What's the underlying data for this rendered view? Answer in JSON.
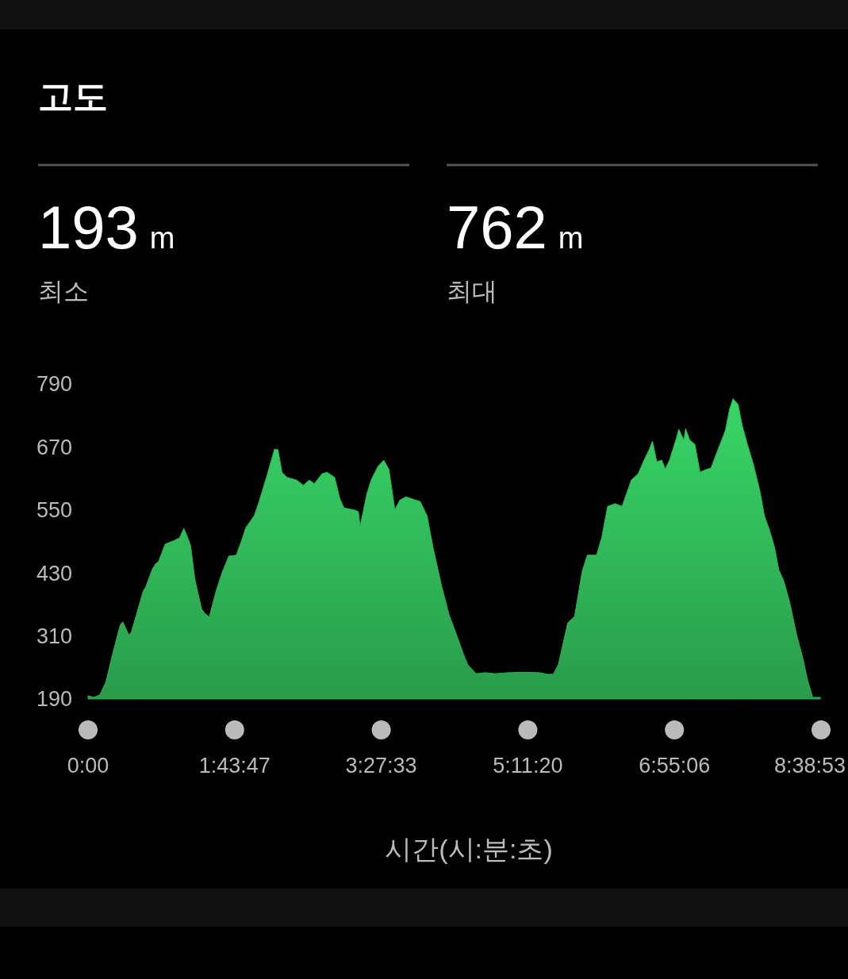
{
  "chart_data": {
    "type": "area",
    "title": "고도",
    "xlabel": "시간(시:분:초)",
    "annotations": [
      "193 m",
      "최소",
      "762 m",
      "최대"
    ],
    "x": [
      0,
      0.07,
      0.14,
      0.21,
      0.3,
      0.38,
      0.41,
      0.48,
      0.51,
      0.57,
      0.65,
      0.68,
      0.76,
      0.8,
      0.83,
      0.91,
      1.02,
      1.08,
      1.13,
      1.17,
      1.21,
      1.26,
      1.34,
      1.38,
      1.43,
      1.51,
      1.58,
      1.66,
      1.75,
      1.81,
      1.86,
      1.96,
      2.01,
      2.11,
      2.2,
      2.24,
      2.29,
      2.35,
      2.46,
      2.54,
      2.61,
      2.67,
      2.76,
      2.82,
      2.91,
      2.97,
      3.02,
      3.14,
      3.19,
      3.21,
      3.29,
      3.34,
      3.42,
      3.49,
      3.55,
      3.62,
      3.68,
      3.75,
      3.92,
      4.0,
      4.07,
      4.17,
      4.26,
      4.33,
      4.43,
      4.48,
      4.58,
      4.69,
      4.8,
      4.95,
      5.14,
      5.33,
      5.42,
      5.49,
      5.55,
      5.66,
      5.74,
      5.83,
      5.89,
      6.0,
      6.06,
      6.13,
      6.22,
      6.3,
      6.36,
      6.41,
      6.49,
      6.56,
      6.62,
      6.66,
      6.71,
      6.77,
      6.81,
      6.86,
      6.94,
      6.97,
      7.03,
      7.05,
      7.1,
      7.16,
      7.22,
      7.29,
      7.35,
      7.42,
      7.52,
      7.57,
      7.61,
      7.67,
      7.72,
      7.78,
      7.85,
      7.93,
      7.98,
      8.04,
      8.1,
      8.15,
      8.21,
      8.28,
      8.36,
      8.43,
      8.49,
      8.55,
      8.64
    ],
    "series": [
      {
        "color": "#2fb356",
        "values": [
          196,
          193,
          198,
          222,
          282,
          331,
          337,
          312,
          317,
          350,
          395,
          403,
          438,
          448,
          451,
          485,
          492,
          497,
          515,
          500,
          482,
          418,
          361,
          353,
          346,
          395,
          430,
          462,
          464,
          491,
          516,
          539,
          562,
          615,
          666,
          665,
          621,
          612,
          607,
          597,
          607,
          600,
          619,
          622,
          612,
          572,
          554,
          550,
          547,
          519,
          581,
          607,
          633,
          645,
          627,
          551,
          569,
          575,
          566,
          539,
          479,
          406,
          350,
          320,
          275,
          255,
          238,
          240,
          238,
          240,
          241,
          240,
          237,
          237,
          256,
          335,
          347,
          433,
          464,
          464,
          497,
          557,
          562,
          557,
          584,
          607,
          619,
          645,
          665,
          681,
          642,
          645,
          628,
          645,
          686,
          704,
          683,
          705,
          683,
          675,
          622,
          627,
          630,
          660,
          702,
          743,
          762,
          751,
          710,
          675,
          637,
          584,
          539,
          512,
          479,
          436,
          414,
          373,
          312,
          270,
          225,
          193,
          193
        ]
      }
    ],
    "xlim": [
      0,
      8.6481
    ],
    "xticks": [
      {
        "value": 0,
        "label": "0:00"
      },
      {
        "value": 1.7297,
        "label": "1:43:47"
      },
      {
        "value": 3.4592,
        "label": "3:27:33"
      },
      {
        "value": 5.1889,
        "label": "5:11:20"
      },
      {
        "value": 6.9183,
        "label": "6:55:06"
      },
      {
        "value": 8.6481,
        "label": "8:38:53"
      }
    ],
    "ylim": [
      190,
      790
    ],
    "yticks": [
      190,
      310,
      430,
      550,
      670,
      790
    ],
    "grid": false
  }
}
